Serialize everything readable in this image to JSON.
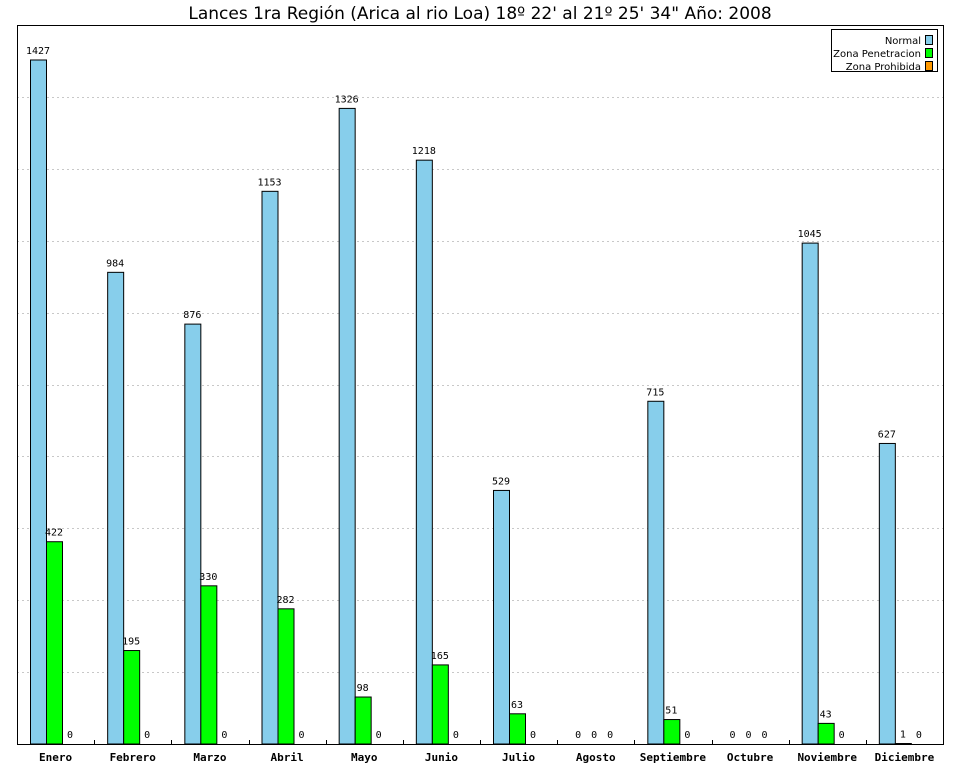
{
  "chart_data": {
    "type": "bar",
    "title": "Lances 1ra Región (Arica al rio Loa) 18º 22' al 21º 25' 34\" Año: 2008",
    "categories": [
      "Enero",
      "Febrero",
      "Marzo",
      "Abril",
      "Mayo",
      "Junio",
      "Julio",
      "Agosto",
      "Septiembre",
      "Octubre",
      "Noviembre",
      "Diciembre"
    ],
    "series": [
      {
        "name": "Normal",
        "color": "#87ceeb",
        "values": [
          1427,
          984,
          876,
          1153,
          1326,
          1218,
          529,
          0,
          715,
          0,
          1045,
          627
        ]
      },
      {
        "name": "Zona Penetracion",
        "color": "#00ff00",
        "values": [
          422,
          195,
          330,
          282,
          98,
          165,
          63,
          0,
          51,
          0,
          43,
          1
        ]
      },
      {
        "name": "Zona Prohibida",
        "color": "#ff9900",
        "values": [
          0,
          0,
          0,
          0,
          0,
          0,
          0,
          0,
          0,
          0,
          0,
          0
        ]
      }
    ],
    "data_labels": [
      [
        "1427",
        "984",
        "876",
        "1153",
        "1326",
        "1218",
        "529",
        "0",
        "715",
        "0",
        "1045",
        "627"
      ],
      [
        "422",
        "195",
        "330",
        "282",
        "98",
        "165",
        "63",
        "0",
        "51",
        "0",
        "43",
        "1"
      ],
      [
        "0",
        "0",
        "0",
        "0",
        "0",
        "0",
        "0",
        "0",
        "0",
        "0",
        "0",
        "0"
      ]
    ],
    "ylim": [
      0,
      1500
    ],
    "y_gridlines": [
      150,
      300,
      450,
      600,
      750,
      900,
      1050,
      1200,
      1350
    ],
    "xlabel": "",
    "ylabel": "",
    "grid": true,
    "legend_position": "top-right"
  }
}
